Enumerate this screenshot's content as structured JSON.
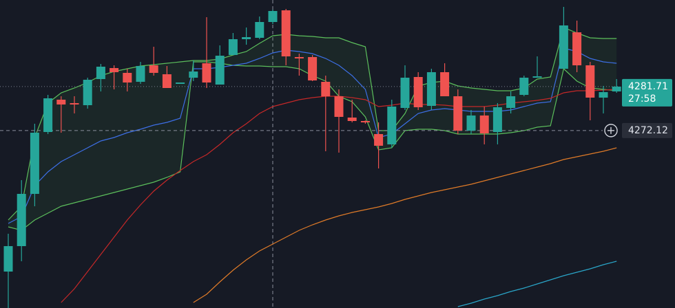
{
  "chart_data": {
    "type": "candlestick",
    "up_color": "#26a69a",
    "down_color": "#ef5350",
    "ylim": [
      4233.4,
      4300.6
    ],
    "open": [
      4241.35,
      4246.9,
      4258.3,
      4271.8,
      4278.85,
      4278.1,
      4277.65,
      4283.35,
      4285.75,
      4284.7,
      4282.75,
      4286.35,
      4284.4,
      4282.3,
      4283.65,
      4286.8,
      4282.15,
      4288.6,
      4292.05,
      4292.35,
      4295.8,
      4298.35,
      4288.15,
      4288.15,
      4282.75,
      4279.6,
      4274.95,
      4274.2,
      4271.35,
      4269.1,
      4277.05,
      4283.8,
      4277.5,
      4284.85,
      4279.6,
      4272.1,
      4275.4,
      4271.8,
      4277.05,
      4279.9,
      4283.65,
      null,
      4285.6,
      4293.55,
      4286.35,
      4279.3,
      4280.65
    ],
    "high": [
      4249.6,
      4261.3,
      4273.6,
      4279.9,
      4279.6,
      4279.6,
      4283.65,
      4286.65,
      4286.35,
      4285.6,
      4287.1,
      4290.4,
      4286.2,
      4282.6,
      4287.4,
      4296.85,
      4290.7,
      4293.4,
      4294.6,
      4297.0,
      4298.5,
      4298.65,
      4288.9,
      4288.6,
      4284.1,
      4281.1,
      4278.85,
      4274.35,
      4273.9,
      4278.85,
      4286.35,
      4284.85,
      4285.6,
      4286.8,
      4281.1,
      4276.6,
      4277.35,
      4278.1,
      4280.65,
      4284.1,
      4288.3,
      null,
      4299.1,
      4296.1,
      4287.1,
      4281.85,
      4283.35
    ],
    "low": [
      4233.4,
      4243.6,
      4255.6,
      4271.35,
      4271.65,
      4275.85,
      4276.9,
      4280.65,
      4281.1,
      4280.65,
      4282.3,
      4284.1,
      4281.4,
      4282.3,
      4282.9,
      4281.4,
      4282.15,
      4288.6,
      4290.85,
      4292.05,
      4295.35,
      4286.35,
      4284.1,
      4282.9,
      4267.6,
      4267.3,
      4273.9,
      4273.6,
      4263.85,
      4268.35,
      4276.6,
      4276.6,
      4276.6,
      4279.6,
      4271.35,
      4271.35,
      4269.1,
      4269.1,
      4275.85,
      4279.6,
      4283.65,
      null,
      4285.6,
      4284.85,
      4274.35,
      4275.85,
      4280.35
    ],
    "close": [
      4246.9,
      4258.3,
      4271.65,
      4279.15,
      4277.8,
      4277.8,
      4283.2,
      4286.05,
      4284.85,
      4282.6,
      4286.2,
      4284.7,
      4281.4,
      4282.6,
      4285.0,
      4282.6,
      4288.45,
      4292.05,
      4292.5,
      4295.8,
      4298.2,
      4288.3,
      4287.85,
      4283.05,
      4279.6,
      4275.1,
      4274.2,
      4273.9,
      4268.8,
      4277.35,
      4283.65,
      4277.2,
      4284.85,
      4279.6,
      4272.1,
      4275.4,
      4271.5,
      4277.2,
      4279.6,
      4283.65,
      4283.95,
      null,
      4295.05,
      4286.35,
      4279.3,
      4280.5,
      4281.71
    ],
    "band_fill": "#4caf50",
    "overlays": [
      {
        "color": "#5cbf5c",
        "values": [
          4252.6,
          4255.6,
          4270.6,
          4278.1,
          4280.35,
          4281.4,
          4282.6,
          4284.1,
          4285.0,
          4285.6,
          4286.2,
          4286.5,
          4286.8,
          4287.1,
          4287.4,
          4287.4,
          4287.7,
          4288.6,
          4289.35,
          4291.15,
          4292.8,
          4293.1,
          4292.8,
          4292.65,
          4292.35,
          4292.35,
          4291.3,
          4290.4,
          4272.1,
          4272.1,
          4275.85,
          4281.85,
          4282.6,
          4282.9,
          4281.85,
          4281.4,
          4281.1,
          4280.8,
          4280.8,
          4281.4,
          4283.35,
          4283.8,
          4294.6,
          4293.4,
          4292.35,
          4292.2,
          4292.2
        ]
      },
      {
        "color": "#5cbf5c",
        "values": [
          4251.1,
          4250.35,
          4252.6,
          4254.1,
          4255.6,
          4256.35,
          4257.1,
          4257.85,
          4258.6,
          4259.35,
          4260.1,
          4260.85,
          4261.9,
          4263.1,
          4287.1,
          4287.1,
          4286.8,
          4286.35,
          4286.2,
          4286.2,
          4286.05,
          4286.05,
          4285.6,
          4284.1,
          4282.9,
          4279.6,
          4278.4,
          4275.1,
          4267.9,
          4268.35,
          4272.1,
          4272.4,
          4272.4,
          4272.1,
          4271.35,
          4271.35,
          4271.35,
          4271.35,
          4271.65,
          4272.1,
          4272.85,
          4273.15,
          4285.6,
          4282.9,
          4281.4,
          4281.1,
          4280.8
        ]
      },
      {
        "color": "#3d6fe6",
        "values": [
          4251.85,
          4253.35,
          4260.1,
          4263.1,
          4265.35,
          4266.85,
          4268.35,
          4269.85,
          4270.6,
          4271.65,
          4272.4,
          4273.3,
          4273.9,
          4274.8,
          4285.6,
          4285.6,
          4285.9,
          4286.35,
          4286.8,
          4287.85,
          4289.05,
          4289.65,
          4289.35,
          4288.9,
          4287.85,
          4286.35,
          4284.1,
          4281.1,
          4270.6,
          4271.35,
          4273.6,
          4275.85,
          4276.6,
          4276.9,
          4276.6,
          4276.3,
          4276.3,
          4276.3,
          4276.6,
          4277.35,
          4278.1,
          4278.4,
          4290.1,
          4289.35,
          4287.85,
          4287.1,
          4286.8
        ]
      },
      {
        "color": "#c62828",
        "values": [
          null,
          null,
          null,
          null,
          4234.6,
          4237.6,
          4241.35,
          4245.1,
          4248.85,
          4252.6,
          4255.9,
          4258.9,
          4261.3,
          4263.4,
          4265.35,
          4266.85,
          4269.1,
          4271.65,
          4273.6,
          4275.85,
          4277.35,
          4278.1,
          4278.85,
          4279.3,
          4279.6,
          4279.6,
          4279.3,
          4278.85,
          4277.35,
          4277.65,
          4278.1,
          4277.8,
          4277.8,
          4277.65,
          4277.35,
          4277.35,
          4277.35,
          4277.65,
          4278.1,
          4278.4,
          4278.7,
          4279.15,
          4280.35,
          4280.8,
          4280.8,
          4280.95,
          4281.1
        ]
      },
      {
        "color": "#e07b28",
        "values": [
          null,
          null,
          null,
          null,
          null,
          null,
          null,
          null,
          null,
          null,
          null,
          null,
          null,
          null,
          4234.6,
          4236.4,
          4239.1,
          4241.65,
          4243.9,
          4245.85,
          4247.35,
          4248.85,
          4250.35,
          4251.55,
          4252.6,
          4253.5,
          4254.25,
          4254.85,
          4255.45,
          4256.2,
          4257.1,
          4257.85,
          4258.6,
          4259.2,
          4259.8,
          4260.4,
          4261.15,
          4261.9,
          4262.65,
          4263.4,
          4264.15,
          4264.9,
          4265.8,
          4266.4,
          4267.0,
          4267.6,
          4268.35
        ]
      },
      {
        "color": "#2aa6c9",
        "values": [
          null,
          null,
          null,
          null,
          null,
          null,
          null,
          null,
          null,
          null,
          null,
          null,
          null,
          null,
          null,
          null,
          null,
          null,
          null,
          null,
          null,
          null,
          null,
          null,
          null,
          null,
          null,
          null,
          null,
          null,
          null,
          null,
          null,
          null,
          4233.7,
          4234.45,
          4235.35,
          4236.1,
          4237.0,
          4237.75,
          4238.65,
          4239.55,
          4240.45,
          4241.2,
          4241.95,
          4242.85,
          4243.6
        ]
      }
    ],
    "last_price": 4281.71,
    "countdown": "27:58",
    "crosshair_price": 4272.12
  }
}
